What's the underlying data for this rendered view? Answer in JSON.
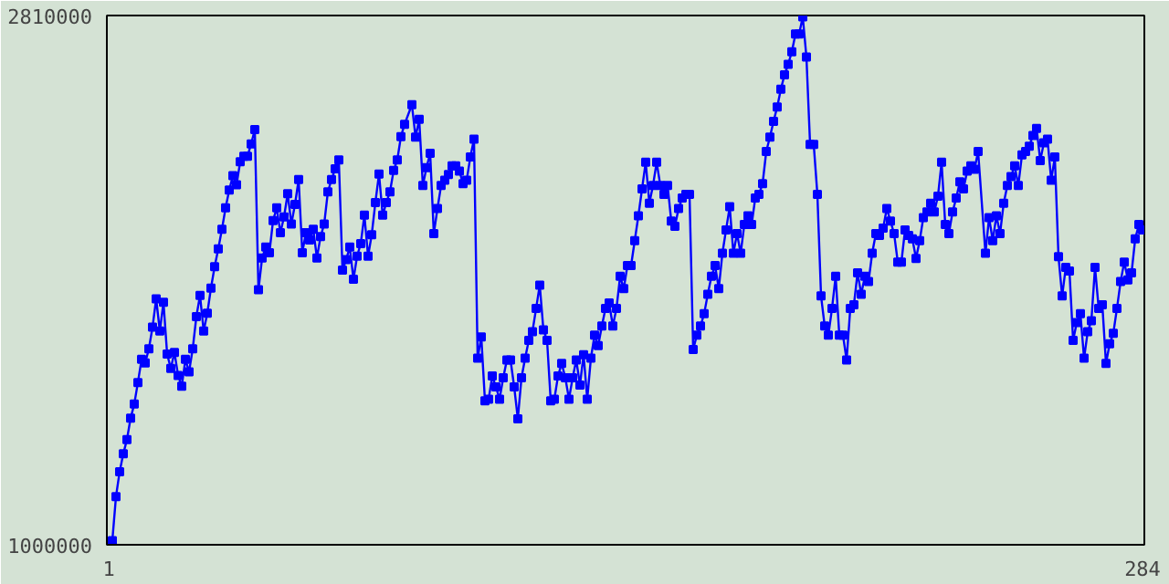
{
  "chart_data": {
    "type": "line",
    "marker": "square",
    "line_style": "solid",
    "xlim": [
      0.5,
      284.5
    ],
    "ylim": [
      1000000,
      2810000
    ],
    "xticks": [
      1,
      284
    ],
    "yticks": [
      1000000,
      2810000
    ],
    "x": [
      1,
      2,
      3,
      4,
      5,
      6,
      7,
      8,
      9,
      10,
      11,
      12,
      13,
      14,
      15,
      16,
      17,
      18,
      19,
      20,
      21,
      22,
      23,
      24,
      25,
      26,
      27,
      28,
      29,
      30,
      31,
      32,
      33,
      34,
      35,
      36,
      37,
      38,
      39,
      40,
      41,
      42,
      43,
      44,
      45,
      46,
      47,
      48,
      49,
      50,
      51,
      52,
      53,
      54,
      55,
      56,
      57,
      58,
      59,
      60,
      61,
      62,
      63,
      64,
      65,
      66,
      67,
      68,
      69,
      70,
      71,
      72,
      73,
      74,
      75,
      76,
      77,
      78,
      79,
      80,
      81,
      82,
      84,
      85,
      86,
      87,
      88,
      89,
      90,
      91,
      92,
      93,
      94,
      95,
      96,
      97,
      98,
      99,
      100,
      101,
      102,
      103,
      104,
      105,
      106,
      107,
      108,
      109,
      110,
      111,
      112,
      113,
      114,
      115,
      116,
      117,
      118,
      119,
      120,
      121,
      122,
      123,
      124,
      125,
      126,
      127,
      128,
      129,
      130,
      131,
      132,
      133,
      134,
      135,
      136,
      137,
      138,
      139,
      140,
      141,
      142,
      143,
      144,
      145,
      146,
      147,
      148,
      149,
      150,
      151,
      152,
      153,
      154,
      155,
      156,
      157,
      158,
      159,
      160,
      161,
      162,
      163,
      164,
      165,
      166,
      167,
      168,
      169,
      170,
      171,
      172,
      173,
      174,
      175,
      176,
      177,
      178,
      179,
      180,
      181,
      182,
      183,
      184,
      185,
      186,
      187,
      188,
      189,
      190,
      191,
      192,
      193,
      194,
      195,
      196,
      197,
      198,
      199,
      200,
      201,
      202,
      203,
      204,
      205,
      206,
      207,
      208,
      209,
      210,
      211,
      212,
      213,
      214,
      215,
      216,
      217,
      218,
      219,
      220,
      221,
      222,
      223,
      224,
      225,
      226,
      227,
      228,
      229,
      230,
      231,
      232,
      233,
      234,
      235,
      236,
      237,
      238,
      239,
      241,
      242,
      243,
      244,
      245,
      246,
      247,
      248,
      249,
      250,
      251,
      252,
      253,
      254,
      255,
      256,
      257,
      258,
      259,
      260,
      261,
      262,
      263,
      264,
      265,
      266,
      267,
      268,
      269,
      270,
      271,
      272,
      273,
      274,
      275,
      276,
      277,
      278,
      279,
      280,
      281,
      282,
      283,
      284
    ],
    "series": [
      {
        "color": "#0000ff",
        "values": [
          1000000,
          1014000,
          1165000,
          1250000,
          1311000,
          1360000,
          1433000,
          1481000,
          1555000,
          1634000,
          1622000,
          1670000,
          1744000,
          1841000,
          1731000,
          1829000,
          1652000,
          1603000,
          1658000,
          1579000,
          1542000,
          1634000,
          1591000,
          1670000,
          1780000,
          1853000,
          1731000,
          1792000,
          1878000,
          1951000,
          2012000,
          2079000,
          2152000,
          2213000,
          2262000,
          2231000,
          2310000,
          2329000,
          2329000,
          2371000,
          2420000,
          1872000,
          1981000,
          2018000,
          1999000,
          2109000,
          2152000,
          2067000,
          2121000,
          2201000,
          2097000,
          2164000,
          2249000,
          1999000,
          2067000,
          2042000,
          2079000,
          1981000,
          2054000,
          2097000,
          2207000,
          2249000,
          2286000,
          2316000,
          1939000,
          1975000,
          2018000,
          1908000,
          1987000,
          2030000,
          2127000,
          1987000,
          2060000,
          2170000,
          2268000,
          2127000,
          2170000,
          2207000,
          2280000,
          2316000,
          2396000,
          2438000,
          2505000,
          2394000,
          2455000,
          2229000,
          2290000,
          2339000,
          2064000,
          2150000,
          2229000,
          2247000,
          2266000,
          2296000,
          2296000,
          2278000,
          2235000,
          2247000,
          2326000,
          2387000,
          1638000,
          1711000,
          1492000,
          1498000,
          1577000,
          1540000,
          1498000,
          1571000,
          1632000,
          1632000,
          1540000,
          1431000,
          1571000,
          1638000,
          1699000,
          1729000,
          1808000,
          1888000,
          1735000,
          1699000,
          1492000,
          1498000,
          1577000,
          1620000,
          1571000,
          1498000,
          1571000,
          1632000,
          1546000,
          1650000,
          1498000,
          1638000,
          1717000,
          1681000,
          1748000,
          1808000,
          1827000,
          1748000,
          1808000,
          1918000,
          1876000,
          1955000,
          1955000,
          2040000,
          2125000,
          2217000,
          2308000,
          2168000,
          2229000,
          2308000,
          2229000,
          2198000,
          2229000,
          2107000,
          2089000,
          2150000,
          2186000,
          2198000,
          2198000,
          1668000,
          1717000,
          1748000,
          1790000,
          1857000,
          1918000,
          1955000,
          1876000,
          1997000,
          2077000,
          2156000,
          1997000,
          2064000,
          1997000,
          2095000,
          2125000,
          2095000,
          2186000,
          2198000,
          2235000,
          2345000,
          2394000,
          2448000,
          2497000,
          2558000,
          2607000,
          2643000,
          2686000,
          2747000,
          2747000,
          2805000,
          2668000,
          2369000,
          2369000,
          2198000,
          1851000,
          1748000,
          1717000,
          1808000,
          1918000,
          1717000,
          1717000,
          1632000,
          1808000,
          1821000,
          1930000,
          1857000,
          1918000,
          1900000,
          1997000,
          2064000,
          2058000,
          2083000,
          2150000,
          2107000,
          2064000,
          1967000,
          1967000,
          2077000,
          2058000,
          2046000,
          1979000,
          2040000,
          2119000,
          2138000,
          2168000,
          2138000,
          2192000,
          2308000,
          2095000,
          2064000,
          2138000,
          2186000,
          2241000,
          2217000,
          2278000,
          2296000,
          2284000,
          2345000,
          1997000,
          2119000,
          2040000,
          2125000,
          2064000,
          2168000,
          2229000,
          2259000,
          2296000,
          2229000,
          2333000,
          2345000,
          2363000,
          2400000,
          2424000,
          2314000,
          2375000,
          2387000,
          2247000,
          2326000,
          1985000,
          1851000,
          1949000,
          1936000,
          1699000,
          1760000,
          1790000,
          1638000,
          1729000,
          1766000,
          1949000,
          1808000,
          1821000,
          1620000,
          1687000,
          1723000,
          1808000,
          1900000,
          1967000,
          1906000,
          1930000,
          2046000,
          2095000,
          2077000
        ]
      }
    ]
  }
}
